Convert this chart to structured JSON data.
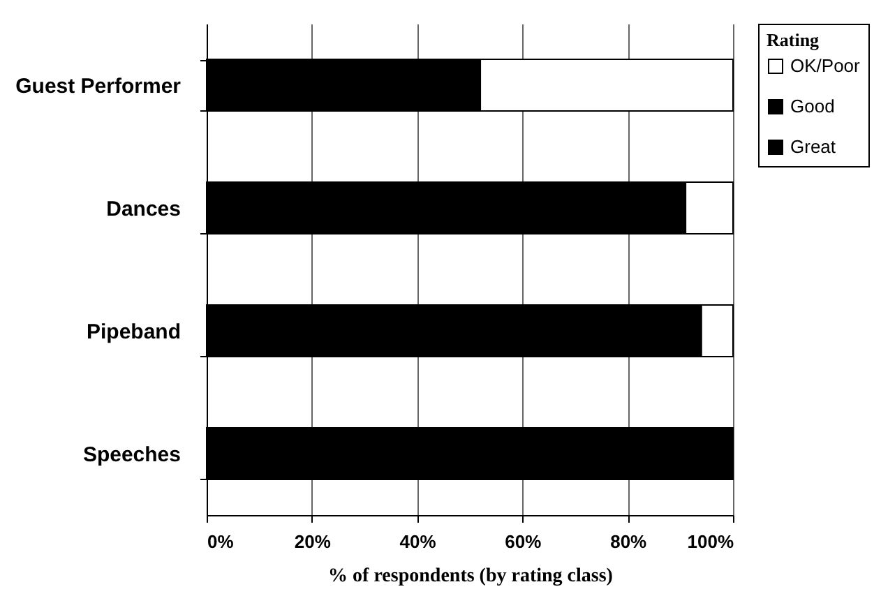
{
  "chart_data": {
    "type": "bar",
    "orientation": "horizontal",
    "stacked": true,
    "categories": [
      "Guest Performer",
      "Dances",
      "Pipeband",
      "Speeches"
    ],
    "series": [
      {
        "name": "Great",
        "color": "#000000",
        "values": [
          34,
          61,
          90,
          78
        ]
      },
      {
        "name": "Good",
        "color": "#000000",
        "values": [
          18,
          30,
          4,
          22
        ]
      },
      {
        "name": "OK/Poor",
        "color": "#ffffff",
        "values": [
          48,
          9,
          6,
          0
        ]
      }
    ],
    "xlim": [
      0,
      100
    ],
    "xticks": [
      {
        "value": 0,
        "label": "0%"
      },
      {
        "value": 20,
        "label": "20%"
      },
      {
        "value": 40,
        "label": "40%"
      },
      {
        "value": 60,
        "label": "60%"
      },
      {
        "value": 80,
        "label": "80%"
      },
      {
        "value": 100,
        "label": "100%"
      }
    ],
    "xlabel": "% of respondents (by rating class)",
    "legend_title": "Rating",
    "legend": "right",
    "grid": "x"
  }
}
